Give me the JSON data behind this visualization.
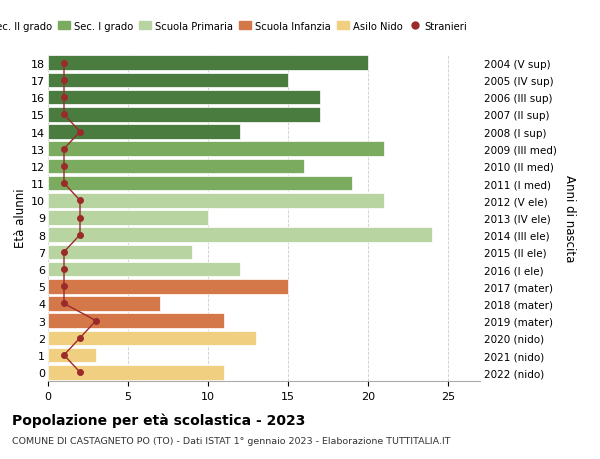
{
  "ages": [
    18,
    17,
    16,
    15,
    14,
    13,
    12,
    11,
    10,
    9,
    8,
    7,
    6,
    5,
    4,
    3,
    2,
    1,
    0
  ],
  "right_labels": [
    "2004 (V sup)",
    "2005 (IV sup)",
    "2006 (III sup)",
    "2007 (II sup)",
    "2008 (I sup)",
    "2009 (III med)",
    "2010 (II med)",
    "2011 (I med)",
    "2012 (V ele)",
    "2013 (IV ele)",
    "2014 (III ele)",
    "2015 (II ele)",
    "2016 (I ele)",
    "2017 (mater)",
    "2018 (mater)",
    "2019 (mater)",
    "2020 (nido)",
    "2021 (nido)",
    "2022 (nido)"
  ],
  "bar_values": [
    20,
    15,
    17,
    17,
    12,
    21,
    16,
    19,
    21,
    10,
    24,
    9,
    12,
    15,
    7,
    11,
    13,
    3,
    11
  ],
  "bar_colors": [
    "#4a7c3f",
    "#4a7c3f",
    "#4a7c3f",
    "#4a7c3f",
    "#4a7c3f",
    "#7aab5e",
    "#7aab5e",
    "#7aab5e",
    "#b8d4a0",
    "#b8d4a0",
    "#b8d4a0",
    "#b8d4a0",
    "#b8d4a0",
    "#d4784a",
    "#d4784a",
    "#d4784a",
    "#f0d080",
    "#f0d080",
    "#f0d080"
  ],
  "stranieri_values": [
    1,
    1,
    1,
    1,
    2,
    1,
    1,
    1,
    2,
    2,
    2,
    1,
    1,
    1,
    1,
    3,
    2,
    1,
    2
  ],
  "title": "Popolazione per età scolastica - 2023",
  "subtitle": "COMUNE DI CASTAGNETO PO (TO) - Dati ISTAT 1° gennaio 2023 - Elaborazione TUTTITALIA.IT",
  "ylabel": "Età alunni",
  "right_ylabel": "Anni di nascita",
  "xlim_max": 27,
  "xticks": [
    0,
    5,
    10,
    15,
    20,
    25
  ],
  "legend_labels": [
    "Sec. II grado",
    "Sec. I grado",
    "Scuola Primaria",
    "Scuola Infanzia",
    "Asilo Nido",
    "Stranieri"
  ],
  "legend_colors": [
    "#4a7c3f",
    "#7aab5e",
    "#b8d4a0",
    "#d4784a",
    "#f0d080",
    "#c0392b"
  ],
  "color_stranieri": "#9b2a2a",
  "bg_color": "#ffffff",
  "grid_color": "#cccccc"
}
